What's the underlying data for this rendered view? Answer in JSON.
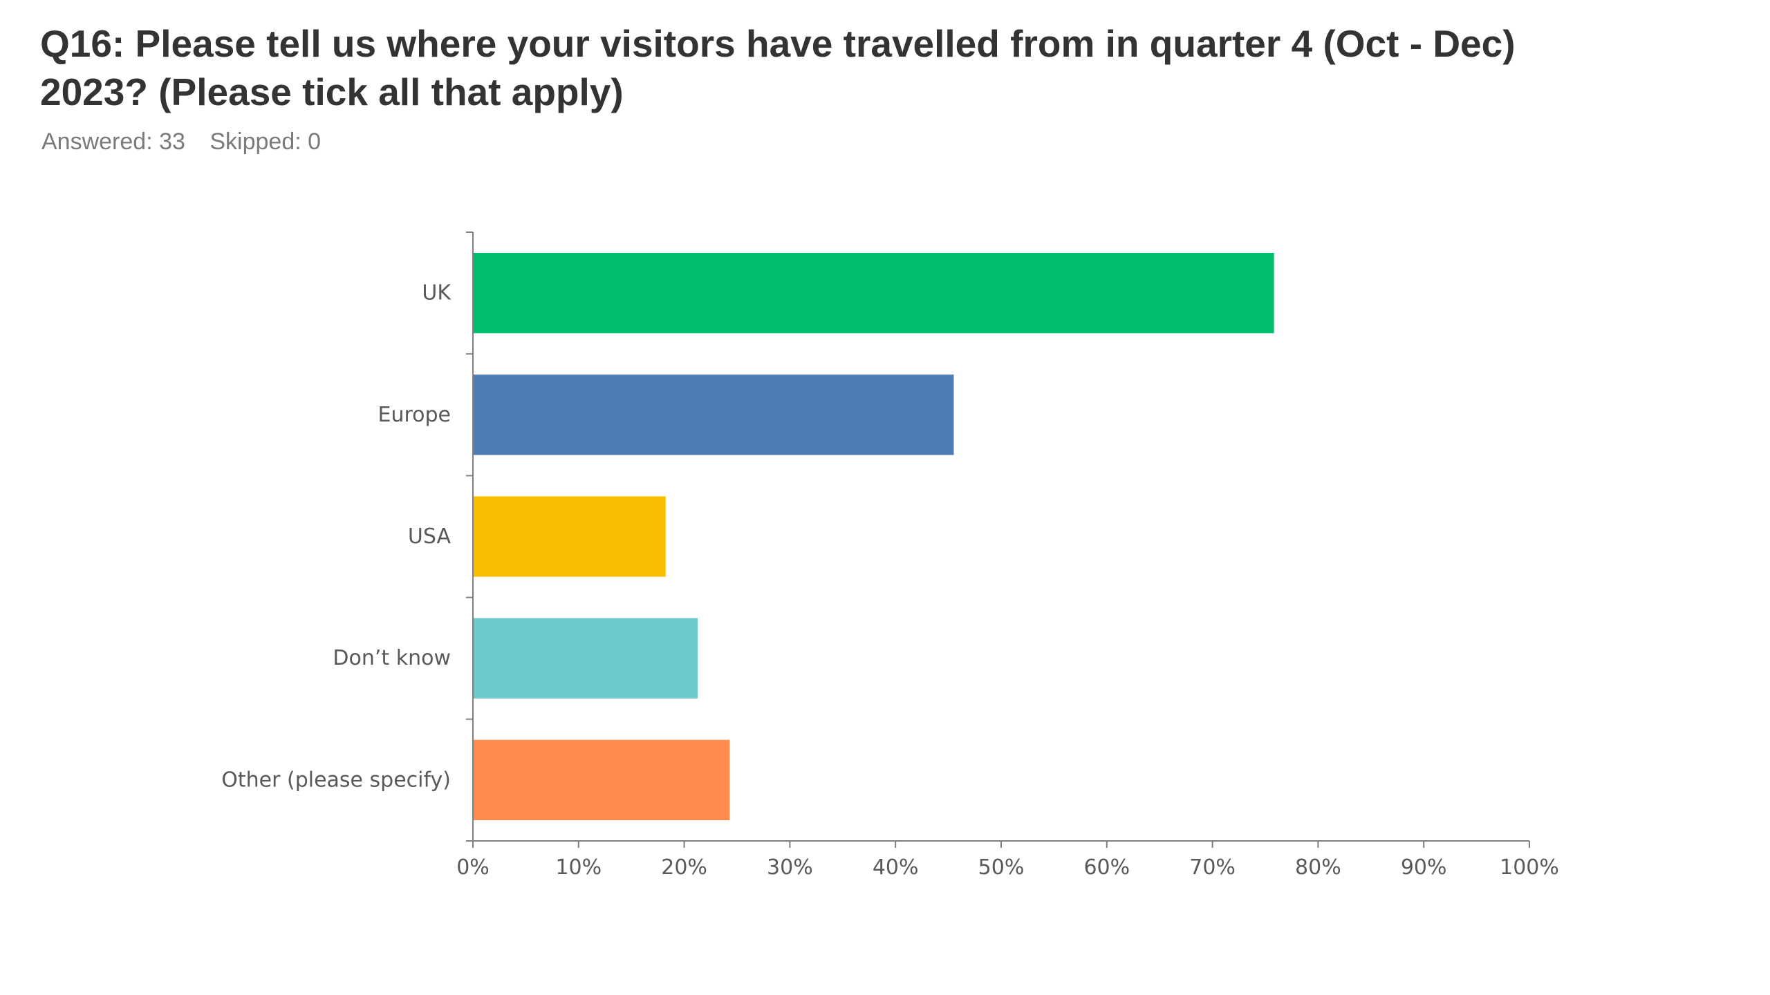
{
  "header": {
    "question": "Q16: Please tell us where your visitors have travelled from in quarter 4 (Oct - Dec) 2023? (Please tick all that apply)",
    "answered": "Answered: 33",
    "skipped": "Skipped: 0"
  },
  "chart_data": {
    "type": "bar",
    "orientation": "horizontal",
    "categories": [
      "UK",
      "Europe",
      "USA",
      "Don’t know",
      "Other (please specify)"
    ],
    "values": [
      75.76,
      45.45,
      18.18,
      21.21,
      24.24
    ],
    "colors": [
      "#00BF6F",
      "#507CB6",
      "#F8BE00",
      "#6BC8CD",
      "#FF8B4F"
    ],
    "xlim": [
      0,
      100
    ],
    "xticks": [
      0,
      10,
      20,
      30,
      40,
      50,
      60,
      70,
      80,
      90,
      100
    ],
    "tick_suffix": "%",
    "grid": false,
    "legend": "none"
  }
}
